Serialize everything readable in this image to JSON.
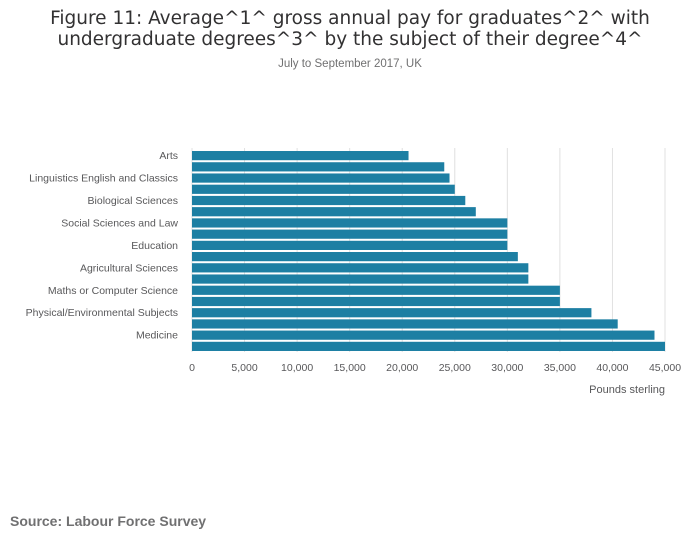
{
  "header": {
    "title_line1": "Figure 11: Average^1^ gross annual pay for graduates^2^ with",
    "title_line2": "undergraduate degrees^3^ by the subject of their degree^4^",
    "subtitle": "July to September 2017, UK"
  },
  "footer": {
    "source_label": "Source:",
    "source_text": "Labour Force Survey"
  },
  "chart_data": {
    "type": "bar",
    "orientation": "horizontal",
    "categories": [
      "Arts",
      "",
      "Linguistics English and Classics",
      "",
      "Biological Sciences",
      "",
      "Social Sciences and Law",
      "",
      "Education",
      "",
      "Agricultural Sciences",
      "",
      "Maths or Computer Science",
      "",
      "Physical/Environmental Subjects",
      "",
      "Medicine",
      ""
    ],
    "values": [
      20600,
      24000,
      24500,
      25000,
      26000,
      27000,
      30000,
      30000,
      30000,
      31000,
      32000,
      32000,
      35000,
      35000,
      38000,
      40500,
      44000,
      45000
    ],
    "xlabel": "Pounds sterling",
    "ylabel": "",
    "xlim": [
      0,
      45000
    ],
    "xticks": [
      0,
      5000,
      10000,
      15000,
      20000,
      25000,
      30000,
      35000,
      40000,
      45000
    ],
    "xtick_labels": [
      "0",
      "5,000",
      "10,000",
      "15,000",
      "20,000",
      "25,000",
      "30,000",
      "35,000",
      "40,000",
      "45,000"
    ],
    "grid": "vertical",
    "bar_color": "#206095",
    "bar_color_fill": "#1d7fa3",
    "grid_color": "#e0e0e0"
  }
}
